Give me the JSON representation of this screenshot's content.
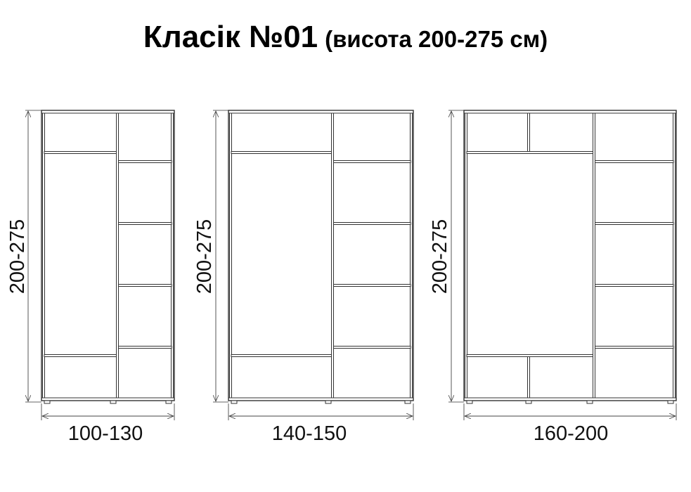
{
  "title": {
    "main": "Класік №01",
    "sub": "(висота 200-275 см)"
  },
  "wardrobes": [
    {
      "height_label": "200-275",
      "width_label": "100-130"
    },
    {
      "height_label": "200-275",
      "width_label": "140-150"
    },
    {
      "height_label": "200-275",
      "width_label": "160-200"
    }
  ],
  "colors": {
    "line": "#333333",
    "background": "#ffffff"
  }
}
